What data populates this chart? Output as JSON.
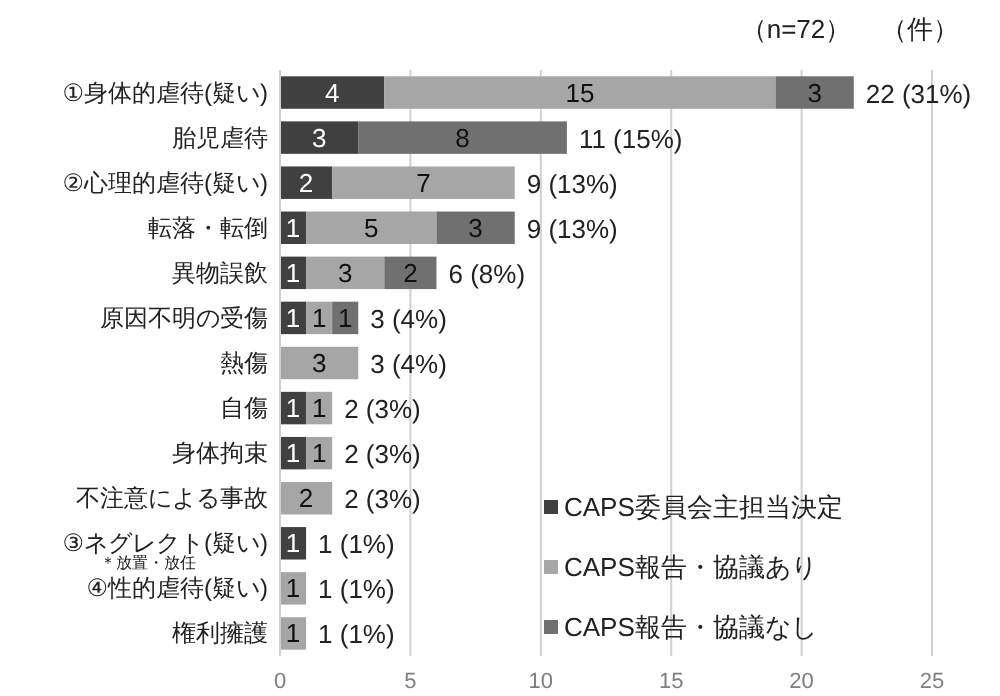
{
  "chart_data": {
    "type": "bar",
    "orientation": "horizontal",
    "stacked": true,
    "categories": [
      "①身体的虐待(疑い)",
      "胎児虐待",
      "②心理的虐待(疑い)",
      "転落・転倒",
      "異物誤飲",
      "原因不明の受傷",
      "熱傷",
      "自傷",
      "身体拘束",
      "不注意による事故",
      "③ネグレクト(疑い)",
      "④性的虐待(疑い)",
      "権利擁護"
    ],
    "series": [
      {
        "name": "CAPS委員会主担当決定",
        "color": "#404040",
        "values": [
          4,
          3,
          2,
          1,
          1,
          1,
          0,
          1,
          1,
          0,
          1,
          0,
          0
        ],
        "value_labels": [
          "4",
          "3",
          "2",
          "1",
          "1",
          "1",
          null,
          "1",
          "1",
          null,
          "1",
          null,
          null
        ]
      },
      {
        "name": "CAPS報告・協議あり",
        "color": "#a6a6a6",
        "values": [
          15,
          0,
          7,
          5,
          3,
          1,
          3,
          1,
          1,
          2,
          0,
          1,
          1
        ],
        "value_labels": [
          "15",
          null,
          "7",
          "5",
          "3",
          "1",
          "3",
          "1",
          "1",
          "2",
          null,
          "1",
          "1"
        ]
      },
      {
        "name": "CAPS報告・協議なし",
        "color": "#707070",
        "values": [
          3,
          8,
          0,
          3,
          2,
          1,
          0,
          0,
          0,
          0,
          0,
          0,
          0
        ],
        "value_labels": [
          "3",
          "8",
          null,
          "3",
          "2",
          "1",
          null,
          null,
          null,
          null,
          null,
          null,
          null
        ]
      }
    ],
    "totals": [
      "22 (31%)",
      "11 (15%)",
      "9 (13%)",
      "9 (13%)",
      "6 (8%)",
      "3 (4%)",
      "3 (4%)",
      "2 (3%)",
      "2 (3%)",
      "2 (3%)",
      "1 (1%)",
      "1 (1%)",
      "1 (1%)"
    ],
    "xlim": [
      0,
      25
    ],
    "xticks": [
      0,
      5,
      10,
      15,
      20,
      25
    ],
    "grid": "x",
    "legend": "bottom right",
    "annotations": [
      "（n=72）",
      "（件）",
      "＊放置・放任"
    ]
  }
}
